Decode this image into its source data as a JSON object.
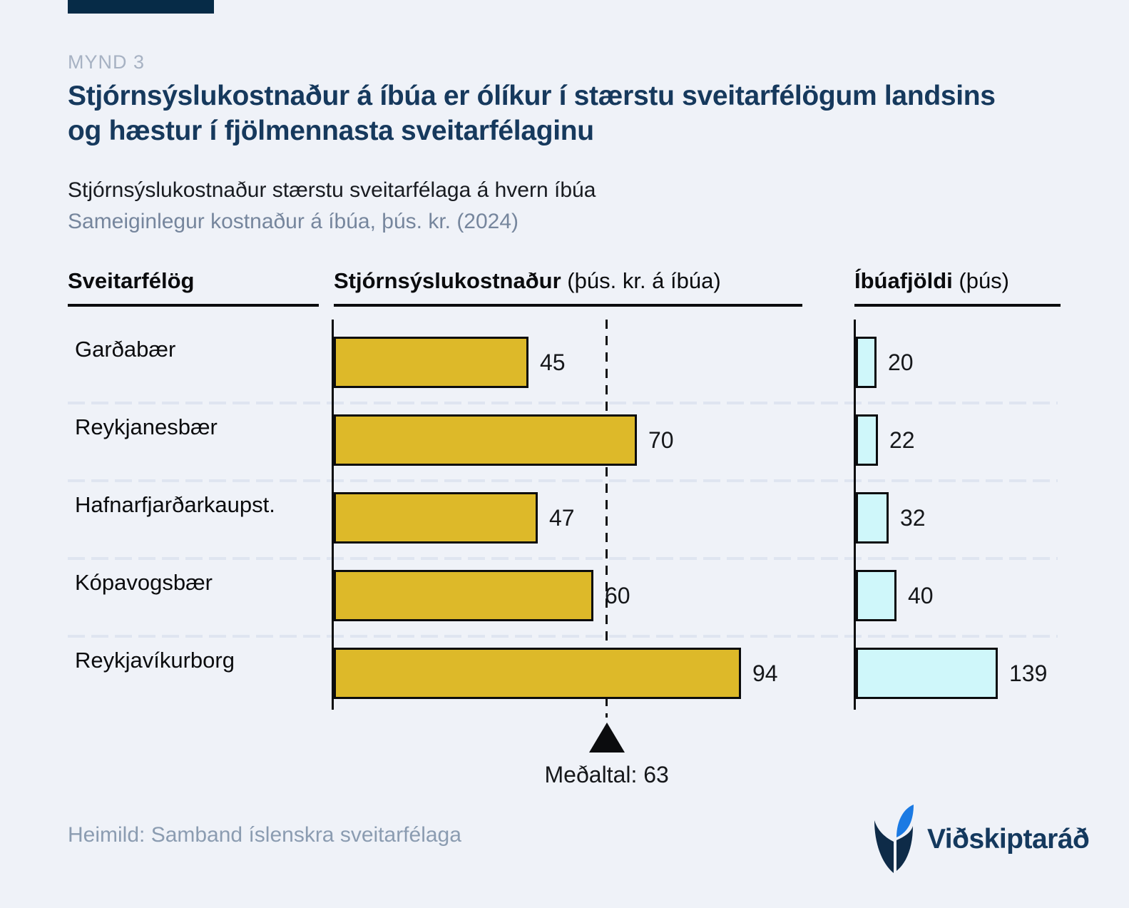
{
  "page": {
    "kicker": "MYND 3",
    "title": "Stjórnsýslukostnaður á íbúa er ólíkur í stærstu sveitarfélögum landsins og hæstur í fjölmennasta sveitarfélaginu",
    "subtitle": "Stjórnsýslukostnaður stærstu sveitarfélaga á hvern íbúa",
    "subtitle2": "Sameiginlegur kostnaður á íbúa, þús. kr. (2024)"
  },
  "columns": {
    "entities": "Sveitarfélög",
    "cost_bold": "Stjórnsýslukostnaður",
    "cost_unit": " (þús. kr. á íbúa)",
    "population_bold": "Íbúafjöldi",
    "population_unit": " (þús)"
  },
  "chart_data": {
    "type": "bar",
    "orientation": "horizontal",
    "categories": [
      "Garðabær",
      "Reykjanesbær",
      "Hafnarfjarðarkaupst.",
      "Kópavogsbær",
      "Reykjavíkurborg"
    ],
    "series": [
      {
        "name": "Stjórnsýslukostnaður (þús. kr. á íbúa)",
        "values": [
          45,
          70,
          47,
          60,
          94
        ],
        "color": "#DDB929"
      },
      {
        "name": "Íbúafjöldi (þús)",
        "values": [
          20,
          22,
          32,
          40,
          139
        ],
        "color": "#CFF7FA"
      }
    ],
    "annotations": [
      {
        "type": "mean-line",
        "series": 0,
        "value": 63,
        "label": "Meðaltal: 63"
      }
    ],
    "value_labels": true,
    "grid": "dashed-row-separators",
    "xlim_cost": [
      0,
      94
    ],
    "xlim_population": [
      0,
      139
    ]
  },
  "mean": {
    "label": "Meðaltal: 63",
    "value": 63
  },
  "footer": {
    "source": "Heimild: Samband íslenskra sveitarfélaga",
    "brand": "Viðskiptaráð"
  },
  "colors": {
    "background": "#EFF2F8",
    "topbar_navy": "#062B47",
    "title_navy": "#16395D",
    "kicker_gray": "#A7B2C3",
    "subtitle_gray_blue": "#76869D",
    "bar_gold": "#DDB929",
    "bar_cyan": "#CFF7FA",
    "line_black": "#0B0C0E",
    "separator": "#DFE5F0",
    "source_gray": "#8B9CB1",
    "logo_blue": "#1B7AE3"
  }
}
